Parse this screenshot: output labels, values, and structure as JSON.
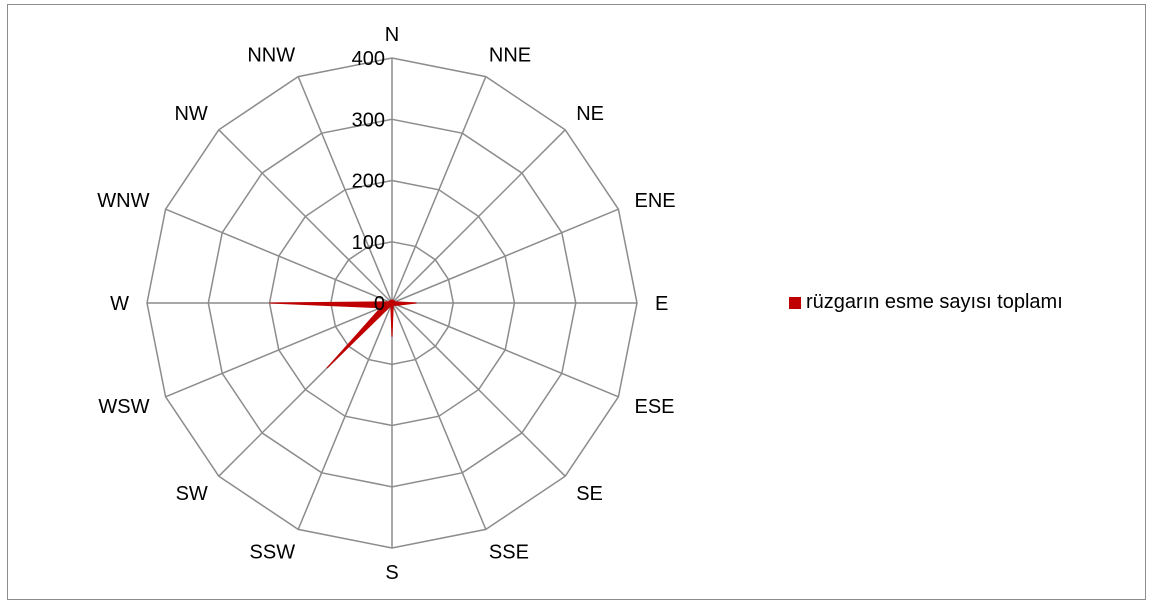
{
  "chart_data": {
    "type": "radar",
    "categories": [
      "N",
      "NNE",
      "NE",
      "ENE",
      "E",
      "ESE",
      "SE",
      "SSE",
      "S",
      "SSW",
      "SW",
      "WSW",
      "W",
      "WNW",
      "NW",
      "NNW"
    ],
    "series": [
      {
        "name": "rüzgarın esme sayısı toplamı",
        "color": "#c00000",
        "values": [
          5,
          5,
          5,
          5,
          40,
          10,
          5,
          5,
          55,
          5,
          150,
          20,
          200,
          5,
          5,
          5
        ]
      }
    ],
    "rlim": [
      0,
      400
    ],
    "ticks": [
      "0",
      "100",
      "200",
      "300",
      "400"
    ],
    "grid_color": "#8c8c8c",
    "legend_position": "right"
  }
}
